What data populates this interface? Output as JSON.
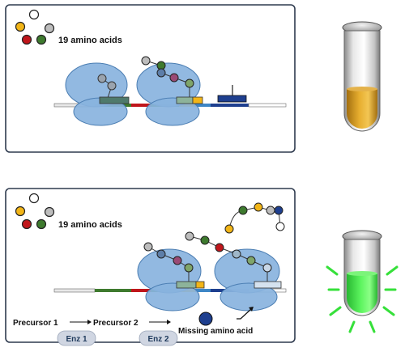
{
  "colors": {
    "ribosome": "#89B3DE",
    "ribosome_stroke": "#4A7DB2",
    "amino_red": "#C0161B",
    "amino_green": "#3E7A2E",
    "amino_yellow": "#F2B517",
    "amino_gray": "#BDBDBD",
    "amino_blue": "#1E3F8F",
    "tube_fluid_top": "#E0A52A",
    "tube_fluid_bottom": "#F5FF4A",
    "glow": "#36E03A",
    "enzyme_badge": "#D0D6E2"
  },
  "panel_top": {
    "label": "19 amino acids"
  },
  "panel_bottom": {
    "label": "19 amino acids",
    "precursor_1": "Precursor 1",
    "precursor_2": "Precursor 2",
    "enzyme_1": "Enz 1",
    "enzyme_2": "Enz 2",
    "missing_label": "Missing amino acid"
  }
}
